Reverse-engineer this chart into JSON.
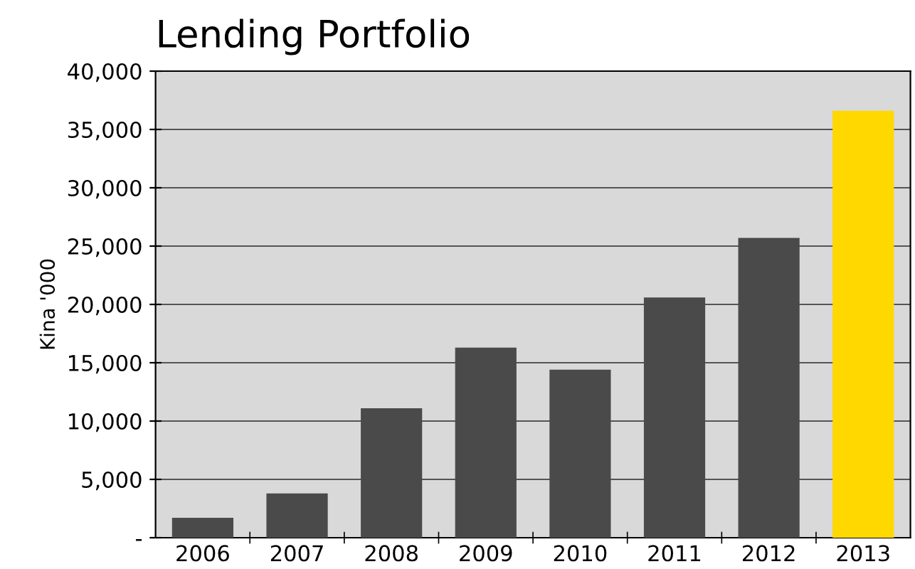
{
  "chart_data": {
    "type": "bar",
    "title": "Lending Portfolio",
    "ylabel": "Kina '000",
    "categories": [
      "2006",
      "2007",
      "2008",
      "2009",
      "2010",
      "2011",
      "2012",
      "2013"
    ],
    "values": [
      1700,
      3800,
      11100,
      16300,
      14400,
      20600,
      25700,
      36600
    ],
    "colors": [
      "#4a4a4a",
      "#4a4a4a",
      "#4a4a4a",
      "#4a4a4a",
      "#4a4a4a",
      "#4a4a4a",
      "#4a4a4a",
      "#ffd800"
    ],
    "ylim": [
      0,
      40000
    ],
    "yticks": [
      {
        "value": 0,
        "label": "-"
      },
      {
        "value": 5000,
        "label": "5,000"
      },
      {
        "value": 10000,
        "label": "10,000"
      },
      {
        "value": 15000,
        "label": "15,000"
      },
      {
        "value": 20000,
        "label": "20,000"
      },
      {
        "value": 25000,
        "label": "25,000"
      },
      {
        "value": 30000,
        "label": "30,000"
      },
      {
        "value": 35000,
        "label": "35,000"
      },
      {
        "value": 40000,
        "label": "40,000"
      }
    ],
    "grid": "y",
    "legend": false
  }
}
